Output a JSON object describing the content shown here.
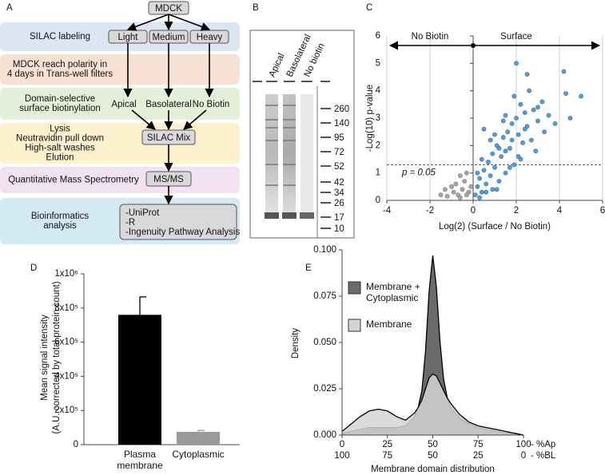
{
  "diagram": {
    "panel": "A",
    "top": "MDCK",
    "steps": [
      {
        "label": [
          "SILAC labeling"
        ],
        "boxes": [
          "Light",
          "Medium",
          "Heavy"
        ]
      },
      {
        "label": [
          "MDCK reach polarity in",
          "4 days in Trans-well filters"
        ]
      },
      {
        "label": [
          "Domain-selective",
          "surface biotinylation"
        ],
        "items": [
          "Apical",
          "Basolateral",
          "No Biotin"
        ]
      },
      {
        "label": [
          "Lysis",
          "Neutravidin pull down",
          "High-salt washes",
          "Elution"
        ],
        "box": "SILAC Mix"
      },
      {
        "label": [
          "Quantitative Mass Spectrometry"
        ],
        "box": "MS/MS"
      },
      {
        "label": [
          "Bioinformatics",
          "analysis"
        ],
        "box_lines": [
          "-UniProt",
          "-R",
          "-Ingenuity Pathway Analysis"
        ]
      }
    ]
  },
  "gel": {
    "panel": "B",
    "lanes": [
      "Apical",
      "Basolateral",
      "No biotin"
    ],
    "markers": [
      260,
      140,
      95,
      72,
      52,
      42,
      34,
      26,
      17,
      10
    ]
  },
  "chart_data": [
    {
      "type": "scatter",
      "panel": "C",
      "xlabel": "Log(2) (Surface / No Biotin)",
      "ylabel": "-Log(10) p-value",
      "annotations": [
        "No Biotin",
        "Surface",
        "p = 0.05"
      ],
      "threshold": 1.3,
      "xlim": [
        -4,
        6
      ],
      "ylim": [
        0,
        6
      ],
      "xticks": [
        -4,
        -2,
        0,
        2,
        4,
        6
      ],
      "yticks": [
        0,
        1,
        2,
        3,
        4,
        5,
        6
      ],
      "grid": true,
      "series": [
        {
          "color": "#a6a6a6",
          "x": [
            -1.5,
            -1.3,
            -1.2,
            -1.0,
            -0.9,
            -0.8,
            -0.7,
            -0.6,
            -0.5,
            -0.4,
            -0.3,
            -0.2,
            -0.1,
            -0.6,
            -0.3
          ],
          "values": [
            0.2,
            0.4,
            0.15,
            0.5,
            0.3,
            0.6,
            0.2,
            0.9,
            0.4,
            0.7,
            1.0,
            0.3,
            0.5,
            0.1,
            0.2
          ]
        },
        {
          "color": "#5b9bd5",
          "x": [
            0.1,
            0.2,
            0.3,
            0.4,
            0.5,
            0.6,
            0.7,
            0.8,
            0.9,
            1.0,
            1.1,
            1.2,
            1.3,
            1.4,
            1.5,
            1.6,
            1.7,
            1.8,
            1.9,
            2.0,
            2.1,
            2.2,
            2.3,
            2.4,
            2.5,
            2.6,
            2.8,
            3.0,
            3.2,
            3.5,
            3.8,
            4.2,
            4.3,
            4.5,
            5.0,
            0.3,
            0.6,
            0.9,
            1.2,
            1.5,
            1.8,
            2.1,
            2.4,
            2.7,
            3.0,
            0.5,
            1.0,
            1.5,
            2.0,
            2.5,
            1.1,
            1.7,
            2.2,
            0.8,
            1.4,
            2.9,
            3.3,
            0.2,
            0.4,
            1.9
          ],
          "values": [
            0.2,
            0.5,
            0.8,
            0.3,
            1.1,
            0.6,
            1.4,
            0.9,
            1.7,
            1.2,
            2.0,
            0.7,
            1.6,
            2.3,
            1.0,
            2.5,
            1.9,
            2.8,
            1.3,
            3.0,
            2.4,
            3.5,
            2.1,
            3.2,
            2.7,
            4.0,
            3.3,
            2.9,
            3.6,
            3.1,
            2.8,
            4.7,
            3.9,
            3.0,
            3.8,
            0.1,
            0.3,
            0.4,
            1.9,
            1.8,
            2.2,
            1.6,
            2.6,
            2.2,
            3.4,
            2.6,
            2.4,
            3.1,
            5.0,
            4.6,
            0.4,
            1.2,
            1.5,
            2.2,
            2.9,
            1.8,
            2.5,
            1.0,
            1.5,
            3.8
          ]
        }
      ]
    },
    {
      "type": "bar",
      "panel": "D",
      "ylabel": [
        "Mean signal intensity",
        "(A.U. corrected by total protein count)"
      ],
      "categories": [
        "Plasma membrane",
        "Cytoplasmic"
      ],
      "values": [
        760000,
        75000
      ],
      "errors": [
        105000,
        8000
      ],
      "colors": [
        "#000000",
        "#999999"
      ],
      "ylim": [
        0,
        1000000
      ],
      "yticks": [
        0,
        {
          "value": 200000,
          "label": "2x10⁵"
        },
        {
          "value": 400000,
          "label": "4x10⁵"
        },
        {
          "value": 600000,
          "label": "6x10⁵"
        },
        {
          "value": 800000,
          "label": "8x10⁵"
        },
        {
          "value": 1000000,
          "label": "1x10⁶"
        }
      ]
    },
    {
      "type": "area",
      "panel": "E",
      "xlabel": "Membrane domain distribution",
      "ylabel": "Density",
      "x_suffixes": [
        "- %Ap",
        "- %BL"
      ],
      "x": [
        0,
        5,
        10,
        15,
        20,
        25,
        30,
        35,
        40,
        42,
        44,
        46,
        48,
        50,
        52,
        54,
        56,
        58,
        60,
        65,
        70,
        75,
        80,
        85,
        90,
        95,
        100
      ],
      "series": [
        {
          "name": "Membrane + Cytoplasmic",
          "color": "#6b6b6b",
          "values": [
            0.001,
            0.002,
            0.003,
            0.004,
            0.004,
            0.004,
            0.004,
            0.005,
            0.01,
            0.015,
            0.024,
            0.045,
            0.078,
            0.097,
            0.08,
            0.05,
            0.03,
            0.02,
            0.015,
            0.009,
            0.006,
            0.004,
            0.003,
            0.002,
            0.001,
            0.001,
            0.0
          ]
        },
        {
          "name": "Membrane",
          "color": "#d4d4d4",
          "values": [
            0.002,
            0.006,
            0.01,
            0.013,
            0.014,
            0.013,
            0.01,
            0.008,
            0.012,
            0.015,
            0.019,
            0.025,
            0.031,
            0.033,
            0.032,
            0.028,
            0.024,
            0.02,
            0.017,
            0.011,
            0.007,
            0.005,
            0.004,
            0.003,
            0.002,
            0.001,
            0.0
          ]
        }
      ],
      "xlim": [
        0,
        100
      ],
      "x2lim": [
        100,
        0
      ],
      "xticks": [
        0,
        25,
        50,
        75,
        100
      ],
      "x2ticks": [
        100,
        75,
        50,
        25,
        0
      ],
      "ylim": [
        0,
        0.1
      ],
      "yticks": [
        {
          "value": 0,
          "label": "0.000"
        },
        {
          "value": 0.025,
          "label": "0.025"
        },
        {
          "value": 0.05,
          "label": "0.050"
        },
        {
          "value": 0.075,
          "label": "0.075"
        },
        {
          "value": 0.1,
          "label": "0.100"
        }
      ]
    }
  ]
}
